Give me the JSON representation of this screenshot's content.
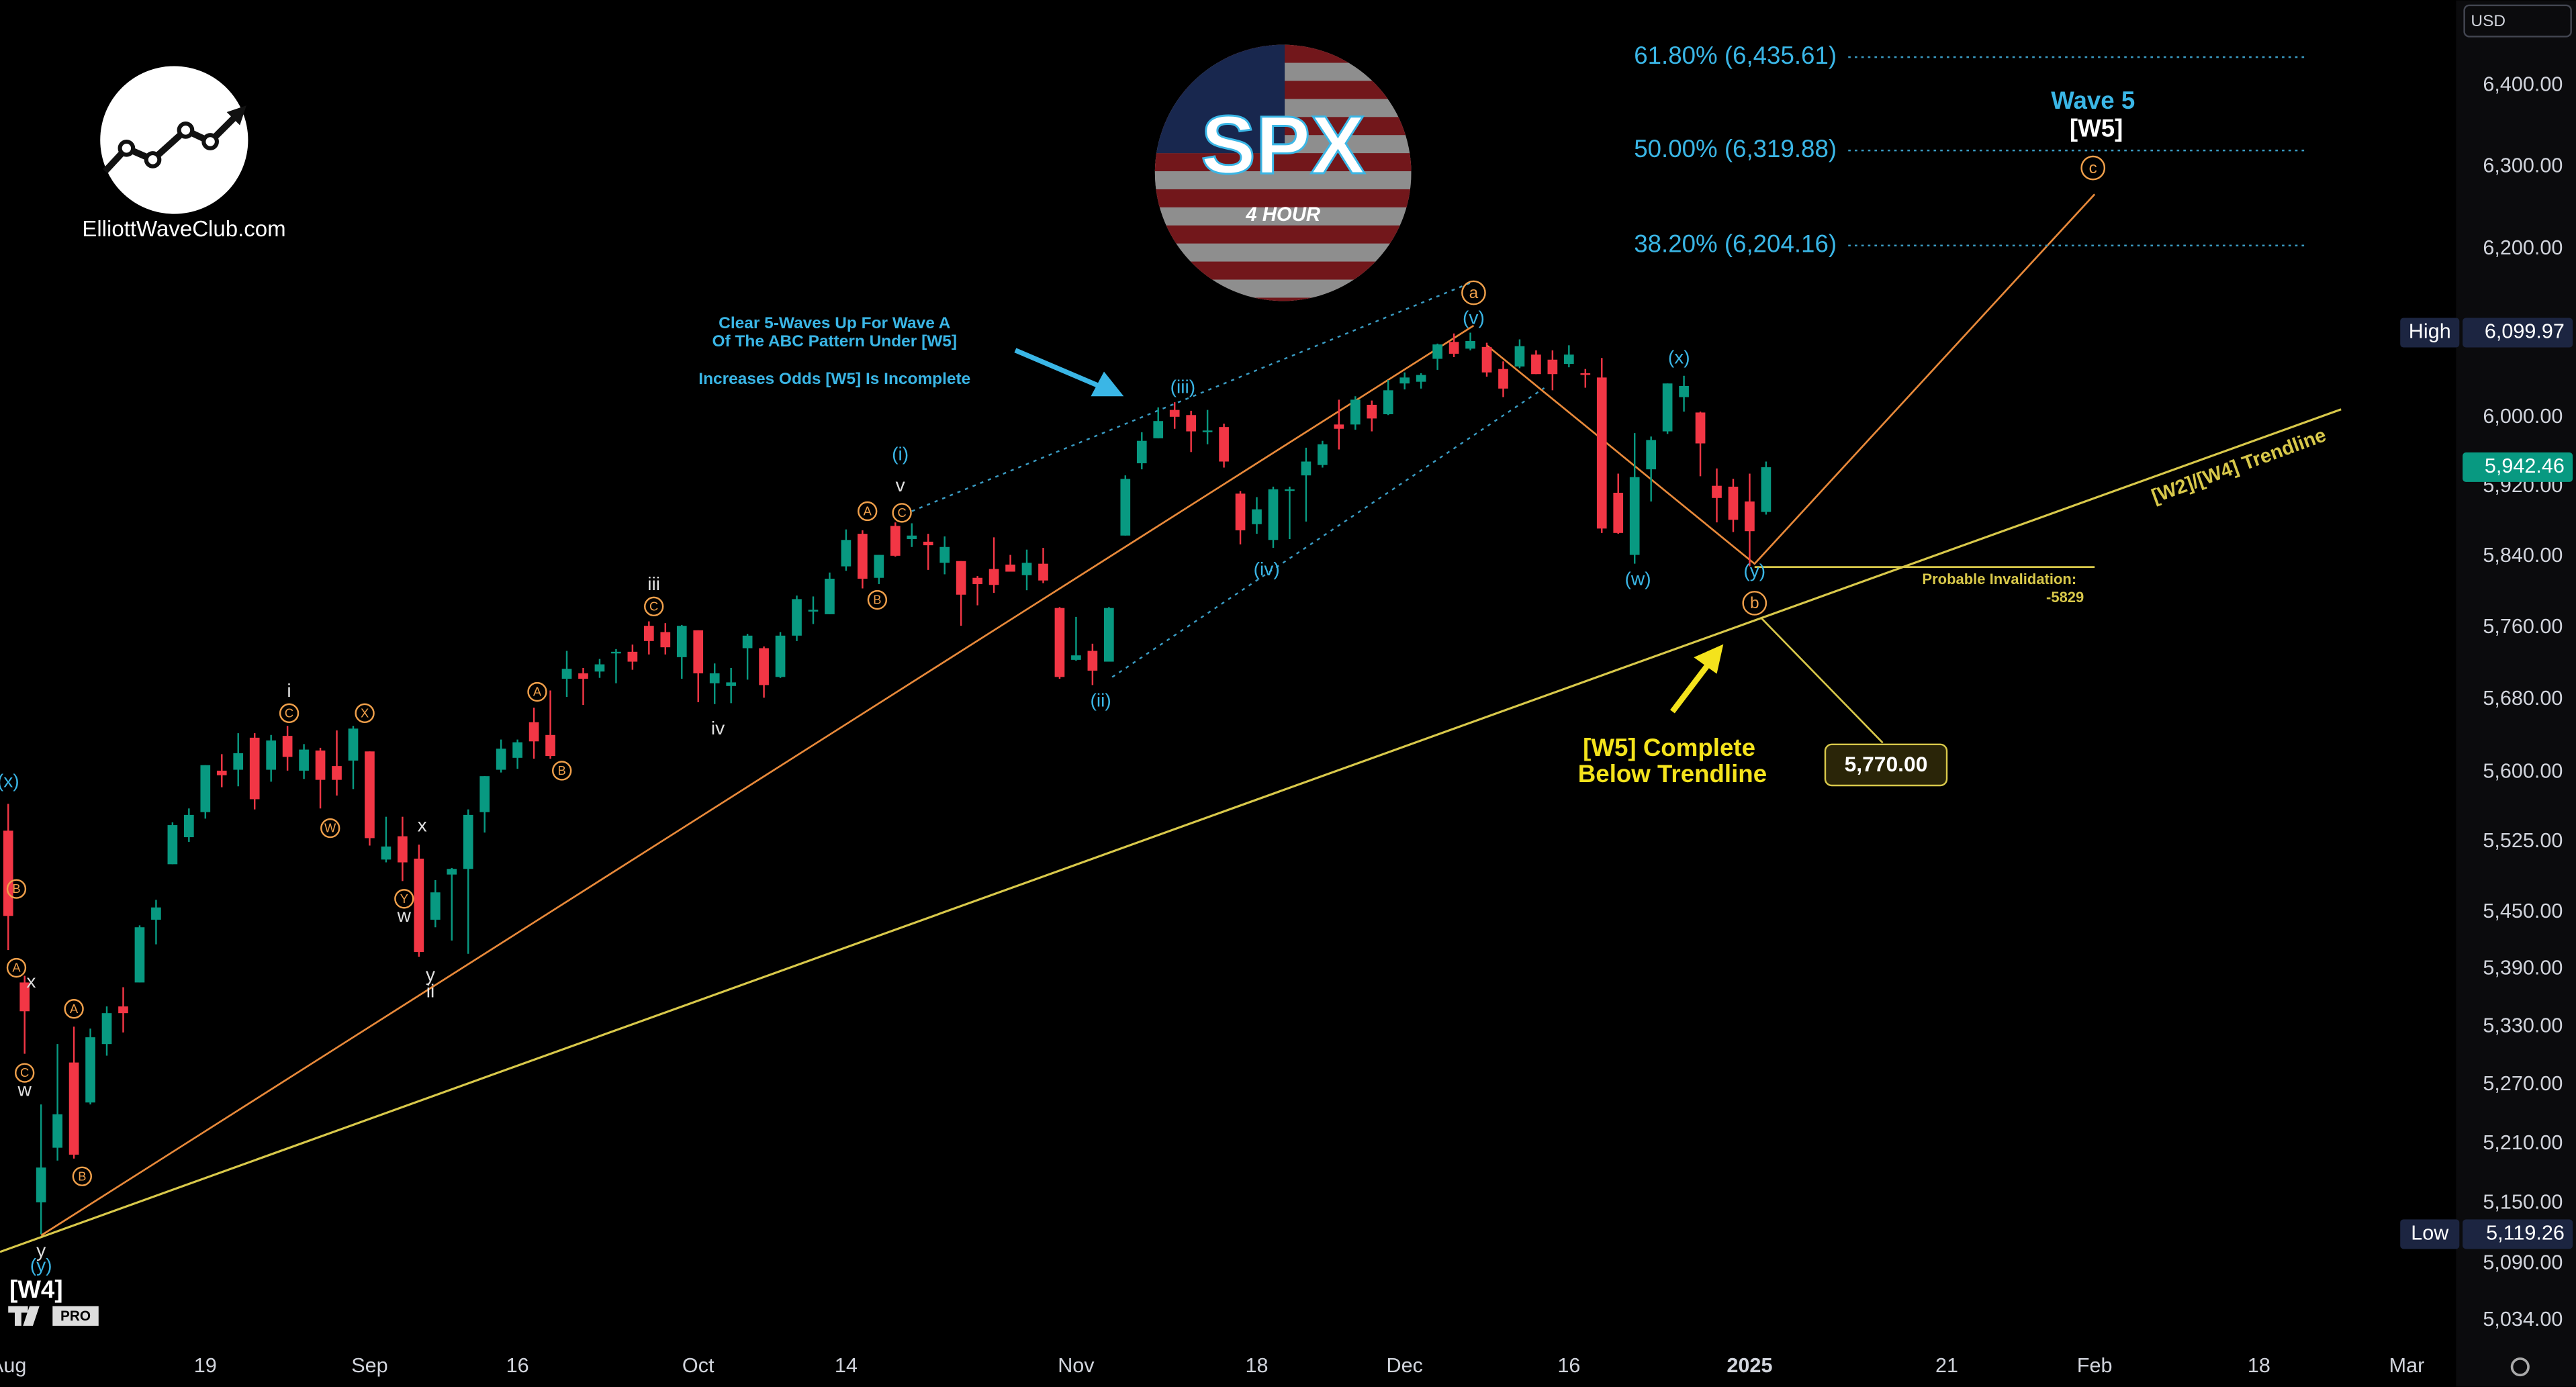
{
  "chart_data": {
    "type": "candlestick",
    "title": "SPX",
    "subtitle": "4 HOUR",
    "currency": "USD",
    "log_scale": true,
    "up_color": "#089981",
    "down_color": "#f23645",
    "x": [
      0,
      1,
      2,
      3,
      4,
      5,
      6,
      7,
      8,
      9,
      10,
      11,
      12,
      13,
      14,
      15,
      16,
      17,
      18,
      19,
      20,
      21,
      22,
      23,
      24,
      25,
      26,
      27,
      28,
      29,
      30,
      31,
      32,
      33,
      34,
      35,
      36,
      37,
      38,
      39,
      40,
      41,
      42,
      43,
      44,
      45,
      46,
      47,
      48,
      49,
      50,
      51,
      52,
      53,
      54,
      55,
      56,
      57,
      58,
      59,
      60,
      61,
      62,
      63,
      64,
      65,
      66,
      67,
      68,
      69,
      70,
      71,
      72,
      73,
      74,
      75,
      76,
      77,
      78,
      79,
      80,
      81,
      82,
      83,
      84,
      85,
      86,
      87,
      88,
      89,
      90,
      91,
      92,
      93,
      94,
      95,
      96,
      97,
      98,
      99,
      100,
      101,
      102,
      103,
      104,
      105,
      106,
      107
    ],
    "open": [
      5537,
      5376,
      5151,
      5206,
      5293,
      5252,
      5312,
      5351,
      5376,
      5442,
      5501,
      5530,
      5557,
      5602,
      5603,
      5638,
      5603,
      5640,
      5602,
      5624,
      5607,
      5613,
      5623,
      5506,
      5531,
      5507,
      5442,
      5490,
      5496,
      5557,
      5603,
      5616,
      5655,
      5641,
      5703,
      5709,
      5711,
      5733,
      5733,
      5762,
      5755,
      5727,
      5757,
      5698,
      5695,
      5737,
      5737,
      5705,
      5751,
      5778,
      5775,
      5829,
      5866,
      5816,
      5875,
      5860,
      5857,
      5833,
      5835,
      5816,
      5826,
      5831,
      5819,
      5832,
      5782,
      5724,
      5734,
      5722,
      5864,
      5947,
      5976,
      6009,
      6003,
      5985,
      5989,
      5912,
      5877,
      5859,
      5917,
      5933,
      5945,
      5992,
      5992,
      6015,
      6004,
      6040,
      6042,
      6069,
      6089,
      6081,
      6083,
      6057,
      6060,
      6074,
      6068,
      6063,
      6052,
      6047,
      5913,
      5842,
      5940,
      5984,
      6024,
      6006,
      5921,
      5920,
      5903,
      5891
    ],
    "high": [
      5566,
      5383,
      5250,
      5312,
      5330,
      5328,
      5351,
      5371,
      5436,
      5463,
      5546,
      5561,
      5608,
      5620,
      5643,
      5643,
      5641,
      5651,
      5631,
      5627,
      5646,
      5651,
      5623,
      5552,
      5552,
      5522,
      5484,
      5497,
      5560,
      5596,
      5636,
      5636,
      5671,
      5690,
      5734,
      5715,
      5725,
      5736,
      5741,
      5767,
      5765,
      5763,
      5757,
      5720,
      5715,
      5753,
      5739,
      5755,
      5796,
      5795,
      5822,
      5871,
      5870,
      5842,
      5879,
      5878,
      5866,
      5863,
      5835,
      5818,
      5862,
      5842,
      5848,
      5850,
      5783,
      5772,
      5742,
      5783,
      5933,
      5983,
      6012,
      6018,
      6008,
      6009,
      5993,
      5915,
      5908,
      5920,
      5920,
      5965,
      5973,
      6021,
      6025,
      6020,
      6044,
      6053,
      6052,
      6087,
      6099,
      6099.97,
      6088,
      6066,
      6092,
      6079,
      6079,
      6085,
      6057,
      6070,
      5935,
      5982,
      5978,
      6040,
      6049,
      6007,
      5941,
      5929,
      5935,
      5949
    ],
    "low": [
      5410,
      5302,
      5119.26,
      5193,
      5195,
      5250,
      5300,
      5324,
      5376,
      5416,
      5501,
      5525,
      5550,
      5584,
      5585,
      5560,
      5590,
      5602,
      5593,
      5561,
      5575,
      5582,
      5521,
      5503,
      5483,
      5403,
      5434,
      5420,
      5406,
      5535,
      5600,
      5604,
      5615,
      5615,
      5683,
      5674,
      5704,
      5698,
      5713,
      5730,
      5730,
      5703,
      5677,
      5675,
      5676,
      5702,
      5682,
      5704,
      5745,
      5764,
      5775,
      5824,
      5804,
      5809,
      5840,
      5851,
      5825,
      5820,
      5762,
      5785,
      5799,
      5823,
      5802,
      5810,
      5703,
      5723,
      5696,
      5722,
      5864,
      5940,
      5976,
      5987,
      5960,
      5969,
      5942,
      5854,
      5866,
      5850,
      5860,
      5880,
      5942,
      5963,
      5986,
      5984,
      6003,
      6033,
      6034,
      6056,
      6071,
      6079,
      6048,
      6024,
      6058,
      6051,
      6032,
      6059,
      6035,
      5867,
      5866,
      5832,
      5903,
      5981,
      6007,
      5932,
      5879,
      5868,
      5829,
      5888
    ],
    "close": [
      5446,
      5346,
      5186,
      5240,
      5199,
      5319,
      5344,
      5344,
      5434,
      5455,
      5543,
      5554,
      5608,
      5597,
      5621,
      5571,
      5635,
      5617,
      5625,
      5592,
      5592,
      5648,
      5529,
      5520,
      5503,
      5408,
      5471,
      5496,
      5554,
      5596,
      5626,
      5633,
      5634,
      5618,
      5714,
      5703,
      5719,
      5733,
      5722,
      5745,
      5738,
      5762,
      5709,
      5709,
      5699,
      5751,
      5696,
      5751,
      5792,
      5780,
      5815,
      5859,
      5815,
      5842,
      5841,
      5864,
      5853,
      5851,
      5797,
      5809,
      5808,
      5823,
      5833,
      5813,
      5705,
      5729,
      5712,
      5782,
      5929,
      5973,
      5996,
      6001,
      5984,
      5985,
      5949,
      5870,
      5894,
      5917,
      5917,
      5949,
      5969,
      5987,
      6021,
      5999,
      6032,
      6047,
      6050,
      6086,
      6075,
      6090,
      6053,
      6034,
      6084,
      6051,
      6051,
      6074,
      6051,
      5872,
      5867,
      5931,
      5974,
      6040,
      6037,
      5970,
      5907,
      5882,
      5869,
      5942.46
    ],
    "ylim": [
      5008,
      6507
    ],
    "yticks": [
      {
        "value": 6400,
        "label": "6,400.00"
      },
      {
        "value": 6300,
        "label": "6,300.00"
      },
      {
        "value": 6200,
        "label": "6,200.00"
      },
      {
        "value": 6000,
        "label": "6,000.00"
      },
      {
        "value": 5920,
        "label": "5,920.00"
      },
      {
        "value": 5840,
        "label": "5,840.00"
      },
      {
        "value": 5760,
        "label": "5,760.00"
      },
      {
        "value": 5680,
        "label": "5,680.00"
      },
      {
        "value": 5600,
        "label": "5,600.00"
      },
      {
        "value": 5525,
        "label": "5,525.00"
      },
      {
        "value": 5450,
        "label": "5,450.00"
      },
      {
        "value": 5390,
        "label": "5,390.00"
      },
      {
        "value": 5330,
        "label": "5,330.00"
      },
      {
        "value": 5270,
        "label": "5,270.00"
      },
      {
        "value": 5210,
        "label": "5,210.00"
      },
      {
        "value": 5150,
        "label": "5,150.00"
      },
      {
        "value": 5090,
        "label": "5,090.00"
      },
      {
        "value": 5034,
        "label": "5,034.00"
      }
    ],
    "xlim": [
      -0.5,
      149
    ],
    "xticks": [
      {
        "value": 0,
        "label": "Aug"
      },
      {
        "value": 12,
        "label": "19"
      },
      {
        "value": 22,
        "label": "Sep"
      },
      {
        "value": 31,
        "label": "16"
      },
      {
        "value": 42,
        "label": "Oct"
      },
      {
        "value": 51,
        "label": "14"
      },
      {
        "value": 65,
        "label": "Nov"
      },
      {
        "value": 76,
        "label": "18"
      },
      {
        "value": 85,
        "label": "Dec"
      },
      {
        "value": 95,
        "label": "16"
      },
      {
        "value": 106,
        "label": "2025"
      },
      {
        "value": 118,
        "label": "21"
      },
      {
        "value": 127,
        "label": "Feb"
      },
      {
        "value": 137,
        "label": "18"
      },
      {
        "value": 146,
        "label": "Mar"
      }
    ],
    "fib_levels": [
      {
        "value": 6435.61,
        "label": "61.80% (6,435.61)"
      },
      {
        "value": 6319.88,
        "label": "50.00% (6,319.88)"
      },
      {
        "value": 6204.16,
        "label": "38.20% (6,204.16)"
      }
    ],
    "price_tags": [
      {
        "name": "High",
        "value": 6099.97,
        "label": "6,099.97"
      },
      {
        "value": 5942.46,
        "label": "5,942.46"
      },
      {
        "name": "Low",
        "value": 5119.26,
        "label": "5,119.26"
      }
    ]
  },
  "annotations": {
    "wave_labels": [
      "(x)",
      "B",
      "A",
      "x",
      "C",
      "w",
      "A",
      "B",
      "y",
      "(y)",
      "i",
      "C",
      "X",
      "W",
      "x",
      "Y",
      "w",
      "y",
      "ii",
      "A",
      "B",
      "iii",
      "C",
      "iv",
      "A",
      "B",
      "(i)",
      "v",
      "C",
      "(ii)",
      "(iii)",
      "(iv)",
      "a",
      "(v)",
      "(x)",
      "(w)",
      "(y)",
      "b",
      "c"
    ],
    "w4": "[W4]",
    "wave5_title": "Wave 5",
    "wave5_label": "[W5]",
    "note_lines": [
      "Clear 5-Waves Up For Wave A",
      "Of The ABC Pattern Under [W5]",
      "Increases Odds [W5] Is Incomplete"
    ],
    "complete_lines": [
      "[W5] Complete",
      "Below Trendline"
    ],
    "target": "5,770.00",
    "invalidation": [
      "Probable Invalidation:",
      "-5829"
    ],
    "trendline_label": "[W2]/[W4] Trendline"
  },
  "branding": {
    "site": "ElliottWaveClub.com",
    "badge": "PRO"
  }
}
